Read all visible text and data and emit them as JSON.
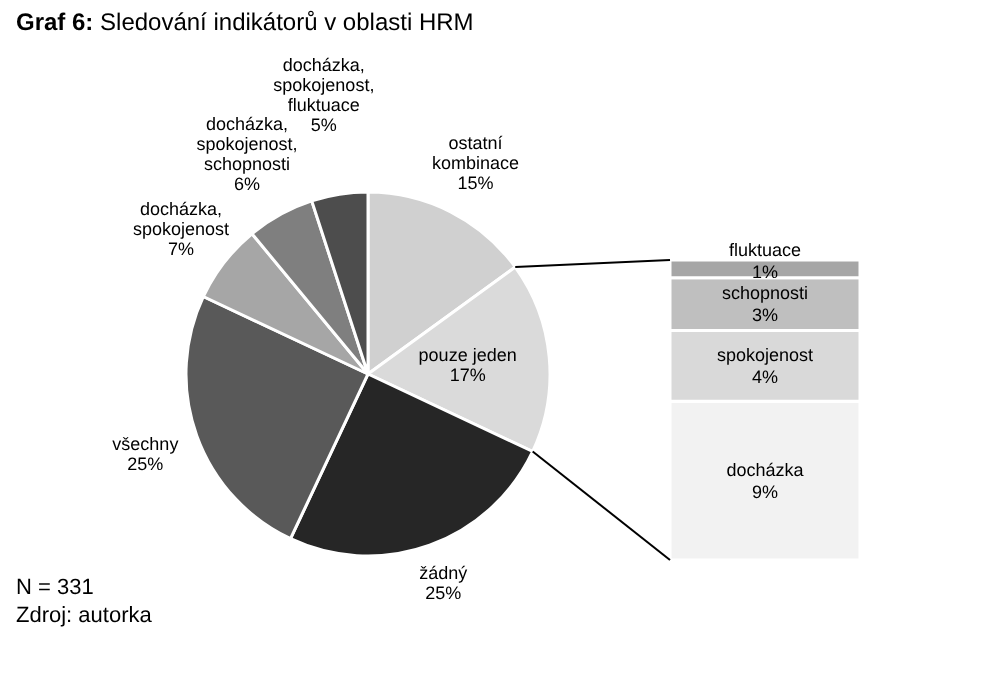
{
  "chart_data": [
    {
      "type": "pie",
      "title": "Graf 6: Sledování indikátorů v oblasti HRM",
      "categories": [
        "ostatní kombinace",
        "pouze jeden",
        "žádný",
        "všechny",
        "docházka, spokojenost",
        "docházka, spokojenost, schopnosti",
        "docházka, spokojenost, fluktuace"
      ],
      "values": [
        15,
        17,
        25,
        25,
        7,
        6,
        5
      ],
      "colors": [
        "#d0d0d0",
        "#dadada",
        "#262626",
        "#595959",
        "#a6a6a6",
        "#7f7f7f",
        "#4d4d4d"
      ],
      "value_labels": [
        "15%",
        "17%",
        "25%",
        "25%",
        "7%",
        "6%",
        "5%"
      ],
      "annotations": [
        "N = 331",
        "Zdroj: autorka"
      ]
    },
    {
      "type": "bar",
      "stacked": true,
      "categories": [
        null
      ],
      "series": [
        {
          "name": "docházka",
          "color": "#f2f2f2",
          "values": [
            9
          ],
          "value_labels": [
            "9%"
          ]
        },
        {
          "name": "spokojenost",
          "color": "#d9d9d9",
          "values": [
            4
          ],
          "value_labels": [
            "4%"
          ]
        },
        {
          "name": "schopnosti",
          "color": "#bfbfbf",
          "values": [
            3
          ],
          "value_labels": [
            "3%"
          ]
        },
        {
          "name": "fluktuace",
          "color": "#a6a6a6",
          "values": [
            1
          ],
          "value_labels": [
            "1%"
          ]
        }
      ]
    }
  ]
}
